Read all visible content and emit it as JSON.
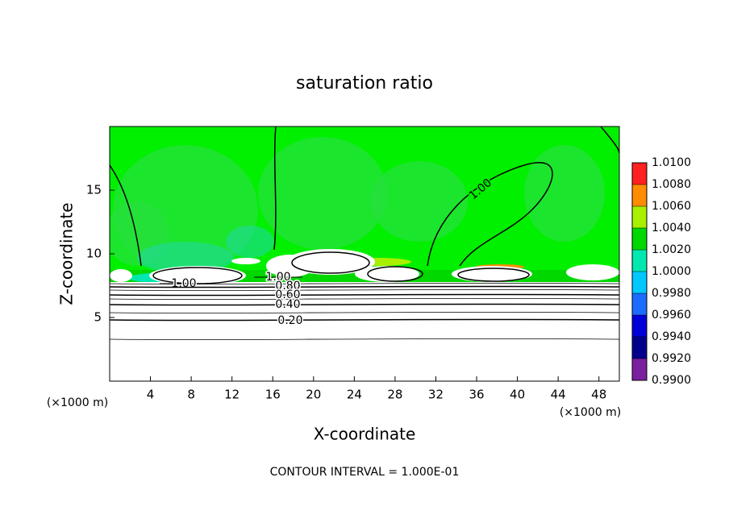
{
  "chart_data": {
    "type": "contour",
    "title": "saturation ratio",
    "x_label": "X-coordinate",
    "y_label": "Z-coordinate",
    "x_unit": "(×1000 m)",
    "y_unit": "(×1000 m)",
    "xlim": [
      0,
      50
    ],
    "xticks": [
      4,
      8,
      12,
      16,
      20,
      24,
      28,
      32,
      36,
      40,
      44,
      48
    ],
    "ylim": [
      0,
      20
    ],
    "yticks": [
      5,
      10,
      15
    ],
    "colorbar": {
      "lim": [
        0.99,
        1.01
      ],
      "ticks": [
        {
          "value": 0.99,
          "label": "0.9900"
        },
        {
          "value": 0.992,
          "label": "0.9920"
        },
        {
          "value": 0.994,
          "label": "0.9940"
        },
        {
          "value": 0.996,
          "label": "0.9960"
        },
        {
          "value": 0.998,
          "label": "0.9980"
        },
        {
          "value": 1.0,
          "label": "1.0000"
        },
        {
          "value": 1.002,
          "label": "1.0020"
        },
        {
          "value": 1.004,
          "label": "1.0040"
        },
        {
          "value": 1.006,
          "label": "1.0060"
        },
        {
          "value": 1.008,
          "label": "1.0080"
        },
        {
          "value": 1.01,
          "label": "1.0100"
        }
      ],
      "colors": [
        "#7a1fa0",
        "#00008c",
        "#0000d8",
        "#1c6cff",
        "#00c8ff",
        "#00e8b0",
        "#00d800",
        "#a8f000",
        "#ff8c00",
        "#ff2020",
        "#ff9c9c"
      ]
    },
    "contour_labels": [
      {
        "value": 1.0,
        "label": "1.00"
      },
      {
        "value": 1.0,
        "label": "1.00"
      },
      {
        "value": 1.0,
        "label": "1.00"
      },
      {
        "value": 0.8,
        "label": "0.80"
      },
      {
        "value": 0.6,
        "label": "0.60"
      },
      {
        "value": 0.4,
        "label": "0.40"
      },
      {
        "value": 0.2,
        "label": "0.20"
      }
    ],
    "note": "CONTOUR INTERVAL = 1.000E-01"
  }
}
